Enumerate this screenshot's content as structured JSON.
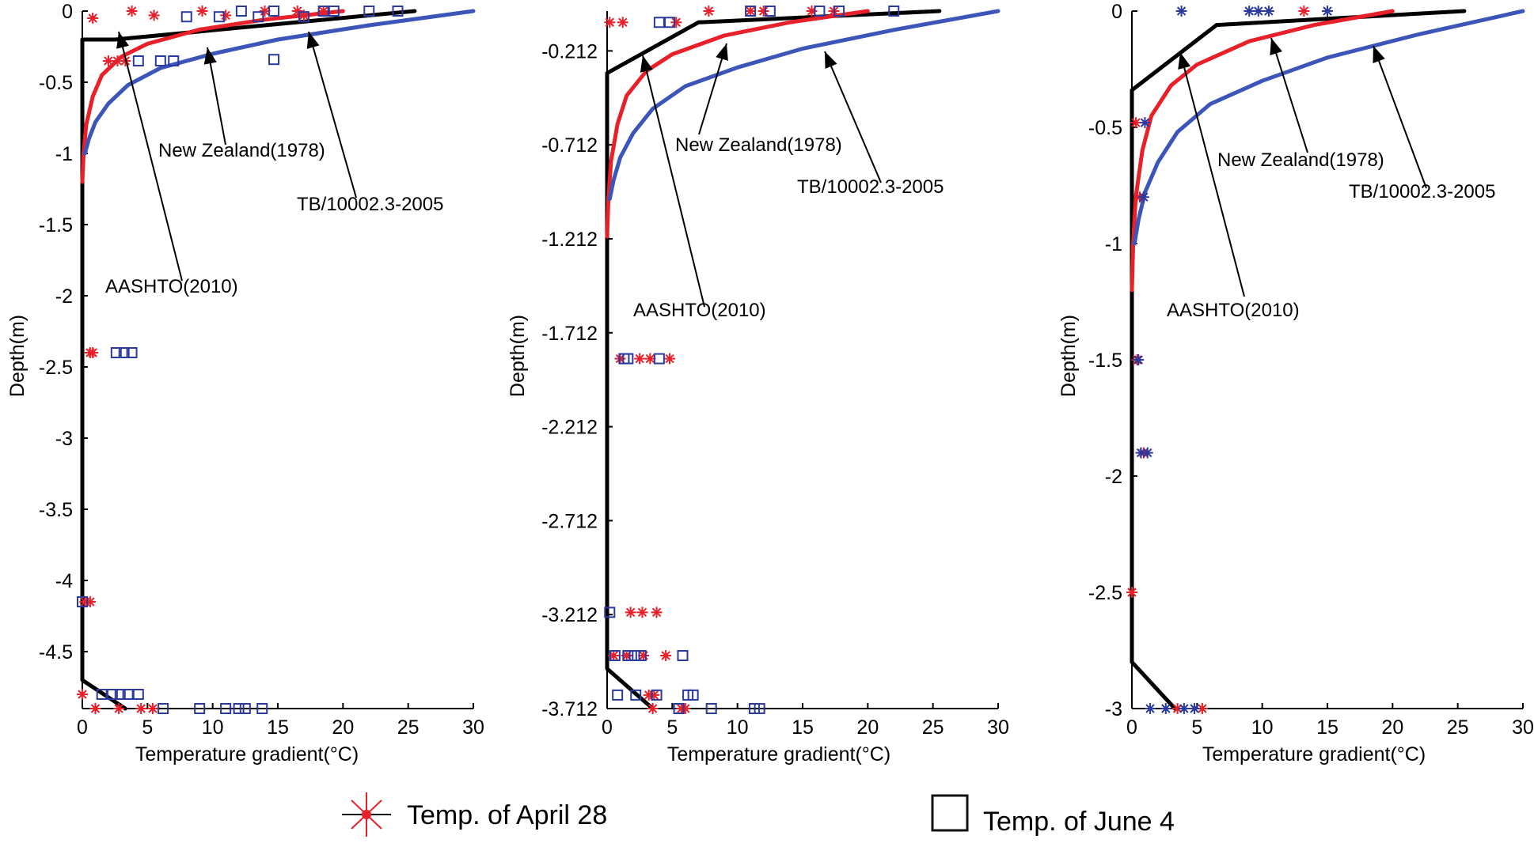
{
  "legend": {
    "april_label": "Temp. of April 28",
    "june_label": "Temp. of June 4"
  },
  "colors": {
    "april": "#e8202a",
    "june": "#2b3a9e",
    "aashto": "#000000",
    "new_zealand": "#e8202a",
    "tb": "#3b55b8"
  },
  "chart_data": [
    {
      "type": "scatter",
      "title": "",
      "xlabel": "Temperature gradient(°C)",
      "ylabel": "Depth(m)",
      "xlim": [
        0,
        30
      ],
      "ylim": [
        -4.9,
        0
      ],
      "xticks": [
        0,
        5,
        10,
        15,
        20,
        25,
        30
      ],
      "xtick_labels": [
        "0",
        "5",
        "10",
        "15",
        "20",
        "25",
        "30"
      ],
      "yticks": [
        0,
        -0.5,
        -1,
        -1.5,
        -2,
        -2.5,
        -3,
        -3.5,
        -4,
        -4.5
      ],
      "ytick_labels": [
        "0",
        "-0.5",
        "-1",
        "-1.5",
        "-2",
        "-2.5",
        "-3",
        "-3.5",
        "-4",
        "-4.5"
      ],
      "curves": [
        {
          "name": "AASHTO(2010)",
          "x": [
            25.5,
            2.5,
            0,
            0,
            3.3
          ],
          "y": [
            0,
            -0.2,
            -0.2,
            -4.7,
            -4.9
          ]
        },
        {
          "name": "New Zealand(1978)",
          "x": [
            20,
            14,
            9,
            5,
            3,
            1.5,
            0.8,
            0.3,
            0.1,
            0
          ],
          "y": [
            0,
            -0.06,
            -0.13,
            -0.23,
            -0.32,
            -0.45,
            -0.6,
            -0.8,
            -1.0,
            -1.2
          ]
        },
        {
          "name": "TB/10002.3-2005",
          "x": [
            30,
            22,
            15,
            10,
            6,
            3.5,
            2,
            1,
            0.5,
            0.2
          ],
          "y": [
            0,
            -0.1,
            -0.2,
            -0.3,
            -0.4,
            -0.52,
            -0.65,
            -0.78,
            -0.9,
            -1.0
          ]
        }
      ],
      "annotations": [
        {
          "text": "New Zealand(1978)"
        },
        {
          "text": "TB/10002.3-2005"
        },
        {
          "text": "AASHTO(2010)"
        }
      ],
      "series": [
        {
          "name": "Temp. of April 28",
          "points": [
            [
              0.8,
              -0.05
            ],
            [
              3.8,
              0
            ],
            [
              5.5,
              -0.03
            ],
            [
              9.2,
              0
            ],
            [
              11,
              -0.03
            ],
            [
              14,
              0
            ],
            [
              16.5,
              0
            ],
            [
              17,
              -0.03
            ],
            [
              18.5,
              0
            ],
            [
              2,
              -0.35
            ],
            [
              2.7,
              -0.35
            ],
            [
              3.3,
              -0.35
            ],
            [
              0.8,
              -2.4
            ],
            [
              0.6,
              -2.4
            ],
            [
              0.2,
              -4.15
            ],
            [
              0.6,
              -4.15
            ],
            [
              0,
              -4.8
            ],
            [
              1,
              -4.9
            ],
            [
              2.8,
              -4.9
            ],
            [
              4.5,
              -4.9
            ],
            [
              5.4,
              -4.9
            ]
          ]
        },
        {
          "name": "Temp. of June 4",
          "points": [
            [
              8,
              -0.04
            ],
            [
              10.5,
              -0.04
            ],
            [
              12.2,
              0
            ],
            [
              14.7,
              0
            ],
            [
              18.5,
              0
            ],
            [
              19.3,
              0
            ],
            [
              22,
              0
            ],
            [
              24.2,
              0
            ],
            [
              13.5,
              -0.04
            ],
            [
              17,
              -0.04
            ],
            [
              4.3,
              -0.35
            ],
            [
              6,
              -0.35
            ],
            [
              7,
              -0.35
            ],
            [
              14.7,
              -0.34
            ],
            [
              2.6,
              -2.4
            ],
            [
              3.2,
              -2.4
            ],
            [
              3.8,
              -2.4
            ],
            [
              0,
              -4.15
            ],
            [
              1.5,
              -4.8
            ],
            [
              2.3,
              -4.8
            ],
            [
              2.9,
              -4.8
            ],
            [
              3.5,
              -4.8
            ],
            [
              4.3,
              -4.8
            ],
            [
              6.2,
              -4.9
            ],
            [
              9,
              -4.9
            ],
            [
              11,
              -4.9
            ],
            [
              12,
              -4.9
            ],
            [
              12.5,
              -4.9
            ],
            [
              13.8,
              -4.9
            ]
          ]
        }
      ]
    },
    {
      "type": "scatter",
      "title": "",
      "xlabel": "Temperature gradient(°C)",
      "ylabel": "Depth(m)",
      "xlim": [
        0,
        30
      ],
      "ylim": [
        -3.712,
        0
      ],
      "xticks": [
        0,
        5,
        10,
        15,
        20,
        25,
        30
      ],
      "xtick_labels": [
        "0",
        "5",
        "10",
        "15",
        "20",
        "25",
        "30"
      ],
      "yticks": [
        -0.212,
        -0.712,
        -1.212,
        -1.712,
        -2.212,
        -2.712,
        -3.212,
        -3.712
      ],
      "ytick_labels": [
        "-0.212",
        "-0.712",
        "-1.212",
        "-1.712",
        "-2.212",
        "-2.712",
        "-3.212",
        "-3.712"
      ],
      "curves": [
        {
          "name": "AASHTO(2010)",
          "x": [
            25.5,
            7,
            0,
            0,
            3.5
          ],
          "y": [
            0,
            -0.06,
            -0.33,
            -3.5,
            -3.712
          ]
        },
        {
          "name": "New Zealand(1978)",
          "x": [
            20,
            14,
            9,
            5,
            3,
            1.5,
            0.8,
            0.3,
            0.1,
            0
          ],
          "y": [
            0,
            -0.06,
            -0.13,
            -0.23,
            -0.32,
            -0.45,
            -0.6,
            -0.8,
            -1.0,
            -1.2
          ]
        },
        {
          "name": "TB/10002.3-2005",
          "x": [
            30,
            22,
            15,
            10,
            6,
            3.5,
            2,
            1,
            0.5,
            0.2
          ],
          "y": [
            0,
            -0.1,
            -0.2,
            -0.3,
            -0.4,
            -0.52,
            -0.65,
            -0.78,
            -0.9,
            -1.0
          ]
        }
      ],
      "annotations": [
        {
          "text": "New Zealand(1978)"
        },
        {
          "text": "TB/10002.3-2005"
        },
        {
          "text": "AASHTO(2010)"
        }
      ],
      "series": [
        {
          "name": "Temp. of April 28",
          "points": [
            [
              0.2,
              -0.06
            ],
            [
              1.2,
              -0.06
            ],
            [
              5.3,
              -0.06
            ],
            [
              7.8,
              0
            ],
            [
              11,
              0
            ],
            [
              12,
              0
            ],
            [
              15.7,
              0
            ],
            [
              17.4,
              0
            ],
            [
              1,
              -1.85
            ],
            [
              2.5,
              -1.85
            ],
            [
              3.3,
              -1.85
            ],
            [
              4.8,
              -1.85
            ],
            [
              1.8,
              -3.2
            ],
            [
              2.7,
              -3.2
            ],
            [
              3.8,
              -3.2
            ],
            [
              0.5,
              -3.43
            ],
            [
              1.5,
              -3.43
            ],
            [
              2.8,
              -3.43
            ],
            [
              4.5,
              -3.43
            ],
            [
              3.2,
              -3.64
            ],
            [
              3.6,
              -3.64
            ],
            [
              3.5,
              -3.712
            ],
            [
              5.7,
              -3.712
            ],
            [
              6,
              -3.712
            ]
          ]
        },
        {
          "name": "Temp. of June 4",
          "points": [
            [
              4,
              -0.06
            ],
            [
              4.8,
              -0.06
            ],
            [
              11,
              0
            ],
            [
              12.5,
              0
            ],
            [
              16.3,
              0
            ],
            [
              17.8,
              0
            ],
            [
              22,
              0
            ],
            [
              1.3,
              -1.85
            ],
            [
              1.6,
              -1.85
            ],
            [
              4,
              -1.85
            ],
            [
              0.2,
              -3.2
            ],
            [
              0.6,
              -3.43
            ],
            [
              1.6,
              -3.43
            ],
            [
              2.1,
              -3.43
            ],
            [
              2.6,
              -3.43
            ],
            [
              5.8,
              -3.43
            ],
            [
              0.8,
              -3.64
            ],
            [
              2.2,
              -3.64
            ],
            [
              3.8,
              -3.64
            ],
            [
              6.2,
              -3.64
            ],
            [
              6.6,
              -3.64
            ],
            [
              5.5,
              -3.712
            ],
            [
              8,
              -3.712
            ],
            [
              11.3,
              -3.712
            ],
            [
              11.7,
              -3.712
            ]
          ]
        }
      ]
    },
    {
      "type": "scatter",
      "title": "",
      "xlabel": "Temperature gradient(°C)",
      "ylabel": "Depth(m)",
      "xlim": [
        0,
        30
      ],
      "ylim": [
        -3,
        0
      ],
      "xticks": [
        0,
        5,
        10,
        15,
        20,
        25,
        30
      ],
      "xtick_labels": [
        "0",
        "5",
        "10",
        "15",
        "20",
        "25",
        "30"
      ],
      "yticks": [
        0,
        -0.5,
        -1,
        -1.5,
        -2,
        -2.5,
        -3
      ],
      "ytick_labels": [
        "0",
        "-0.5",
        "-1",
        "-1.5",
        "-2",
        "-2.5",
        "-3"
      ],
      "curves": [
        {
          "name": "AASHTO(2010)",
          "x": [
            25.5,
            6.5,
            0,
            0,
            3.3
          ],
          "y": [
            0,
            -0.06,
            -0.34,
            -2.8,
            -3
          ]
        },
        {
          "name": "New Zealand(1978)",
          "x": [
            20,
            14,
            9,
            5,
            3,
            1.5,
            0.8,
            0.3,
            0.1,
            0
          ],
          "y": [
            0,
            -0.06,
            -0.13,
            -0.23,
            -0.32,
            -0.45,
            -0.6,
            -0.8,
            -1.0,
            -1.2
          ]
        },
        {
          "name": "TB/10002.3-2005",
          "x": [
            30,
            22,
            15,
            10,
            6,
            3.5,
            2,
            1,
            0.5,
            0.2
          ],
          "y": [
            0,
            -0.1,
            -0.2,
            -0.3,
            -0.4,
            -0.52,
            -0.65,
            -0.78,
            -0.9,
            -1.0
          ]
        }
      ],
      "annotations": [
        {
          "text": "New Zealand(1978)"
        },
        {
          "text": "TB/10002.3-2005"
        },
        {
          "text": "AASHTO(2010)"
        }
      ],
      "series": [
        {
          "name": "Temp. of April 28",
          "points": [
            [
              13.2,
              0
            ],
            [
              0.3,
              -0.48
            ],
            [
              0.6,
              -0.8
            ],
            [
              0.4,
              -1.5
            ],
            [
              0.9,
              -1.9
            ],
            [
              0,
              -2.5
            ],
            [
              5.4,
              -3
            ],
            [
              3.5,
              -3
            ]
          ]
        },
        {
          "name": "Temp. of June 4",
          "points": [
            [
              3.8,
              0
            ],
            [
              9,
              0
            ],
            [
              9.7,
              0
            ],
            [
              10.5,
              0
            ],
            [
              15,
              0
            ],
            [
              1,
              -0.48
            ],
            [
              0.9,
              -0.8
            ],
            [
              0.5,
              -1.5
            ],
            [
              0.7,
              -1.9
            ],
            [
              1.2,
              -1.9
            ],
            [
              1.4,
              -3
            ],
            [
              2.6,
              -3
            ],
            [
              4,
              -3
            ],
            [
              4.8,
              -3
            ]
          ]
        }
      ]
    }
  ]
}
